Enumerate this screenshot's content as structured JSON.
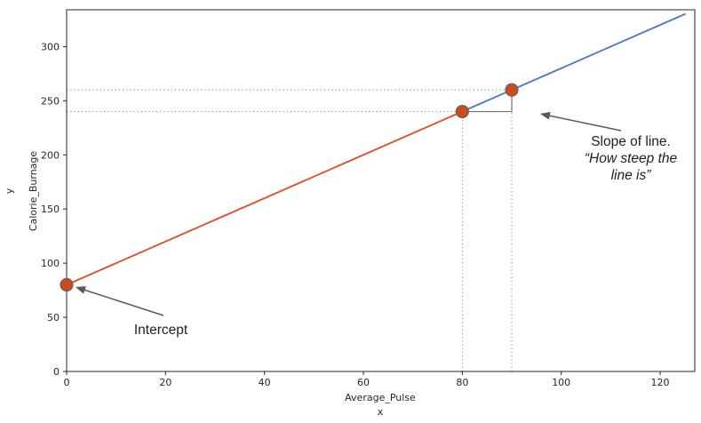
{
  "chart_data": {
    "type": "line",
    "title": "",
    "xlabel": "Average_Pulse",
    "xlabel_axis_letter": "x",
    "ylabel": "Calorie_Burnage",
    "ylabel_axis_letter": "y",
    "xlim": [
      0,
      127
    ],
    "ylim": [
      0,
      334
    ],
    "xticks": [
      0,
      20,
      40,
      60,
      80,
      100,
      120
    ],
    "yticks": [
      0,
      50,
      100,
      150,
      200,
      250,
      300
    ],
    "grid": false,
    "legend": "none",
    "series": [
      {
        "name": "line-segment-left",
        "color": "#e0512b",
        "points": [
          [
            0,
            80
          ],
          [
            80,
            240
          ]
        ]
      },
      {
        "name": "line-segment-right",
        "color": "#4d7ebf",
        "points": [
          [
            80,
            240
          ],
          [
            125,
            330
          ]
        ]
      }
    ],
    "markers": {
      "name": "data-points",
      "color": "#cb4a1e",
      "edge_color": "#636363",
      "radius": 7,
      "points": [
        [
          0,
          80
        ],
        [
          80,
          240
        ],
        [
          90,
          260
        ]
      ]
    },
    "guide_lines": [
      {
        "orientation": "horizontal",
        "value": 240,
        "from": 0,
        "to": 80
      },
      {
        "orientation": "horizontal",
        "value": 260,
        "from": 0,
        "to": 90
      },
      {
        "orientation": "vertical",
        "value": 80,
        "from": 0,
        "to": 240
      },
      {
        "orientation": "vertical",
        "value": 90,
        "from": 0,
        "to": 260
      }
    ],
    "slope_triangle": {
      "color": "#737373",
      "points": [
        [
          80,
          240
        ],
        [
          90,
          240
        ],
        [
          90,
          260
        ]
      ]
    },
    "annotations": [
      {
        "name": "intercept",
        "lines": [
          "Intercept"
        ],
        "italic": [
          false
        ]
      },
      {
        "name": "slope",
        "lines": [
          "Slope of line.",
          "“How steep the",
          "line is”"
        ],
        "italic": [
          false,
          true,
          true
        ]
      }
    ],
    "colors": {
      "guide": "#8f8f8f",
      "arrow": "#595959",
      "axis": "#262626"
    }
  }
}
